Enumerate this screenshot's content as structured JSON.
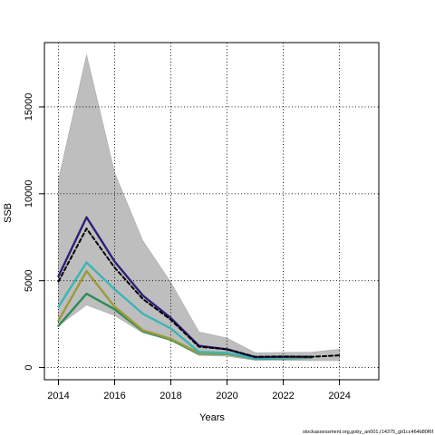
{
  "chart_data": {
    "type": "line",
    "title": "",
    "xlabel": "Years",
    "ylabel": "SSB",
    "xlim": [
      2013.5,
      2025.4
    ],
    "ylim": [
      -700,
      18700
    ],
    "x_ticks": [
      2014,
      2016,
      2018,
      2020,
      2022,
      2024
    ],
    "y_ticks": [
      0,
      5000,
      10000,
      15000
    ],
    "grid": true,
    "grid_style": "dotted",
    "legend": "none",
    "band": {
      "color": "#bebebe",
      "x": [
        2014,
        2015,
        2016,
        2017,
        2018,
        2019,
        2020,
        2021,
        2022,
        2023,
        2024
      ],
      "upper": [
        10800,
        18000,
        11200,
        7300,
        4900,
        2050,
        1700,
        850,
        870,
        880,
        1050
      ],
      "lower": [
        2400,
        3600,
        3000,
        2000,
        1550,
        700,
        650,
        420,
        420,
        400,
        400
      ]
    },
    "series": [
      {
        "color": "#2e8b57",
        "dashed": false,
        "x": [
          2014,
          2015,
          2016,
          2017,
          2018,
          2019,
          2020,
          2021,
          2022,
          2023
        ],
        "values": [
          2400,
          4250,
          3350,
          2100,
          1600,
          800,
          780,
          500,
          520,
          560
        ]
      },
      {
        "color": "#9a9a3c",
        "dashed": false,
        "x": [
          2014,
          2015,
          2016,
          2017,
          2018,
          2019,
          2020,
          2021,
          2022,
          2023
        ],
        "values": [
          2700,
          5550,
          3500,
          2150,
          1650,
          820,
          800,
          520,
          540,
          580
        ]
      },
      {
        "color": "#3ab5b5",
        "dashed": false,
        "x": [
          2014,
          2015,
          2016,
          2017,
          2018,
          2019,
          2020,
          2021,
          2022,
          2023
        ],
        "values": [
          3500,
          6050,
          4500,
          3100,
          2250,
          900,
          850,
          520,
          560,
          600
        ]
      },
      {
        "color": "#2d1f7a",
        "dashed": false,
        "x": [
          2014,
          2015,
          2016,
          2017,
          2018,
          2019,
          2020,
          2021,
          2022,
          2023
        ],
        "values": [
          5250,
          8650,
          6100,
          4150,
          2850,
          1250,
          1050,
          600,
          620,
          620
        ]
      },
      {
        "color": "#000000",
        "dashed": true,
        "x": [
          2014,
          2015,
          2016,
          2017,
          2018,
          2019,
          2020,
          2021,
          2022,
          2023,
          2024
        ],
        "values": [
          4950,
          8000,
          5750,
          3950,
          2750,
          1200,
          1050,
          620,
          640,
          620,
          700
        ]
      }
    ]
  },
  "footnote": "stockassessment.org,goby_an001,r14375_git1cc464b80f6f"
}
